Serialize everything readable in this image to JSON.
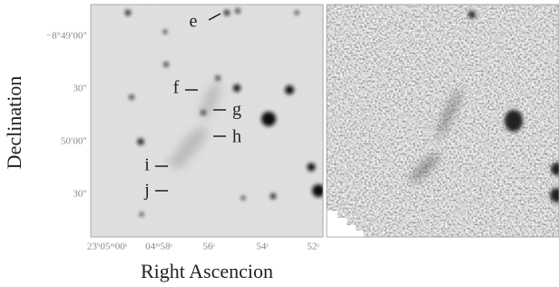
{
  "figure": {
    "y_axis_label": "Declination",
    "x_axis_label": "Right Ascencion",
    "y_tick_labels": [
      "−8°49′00″",
      "30″",
      "50′00″",
      "30″"
    ],
    "x_tick_labels": [
      "23ʰ05ᵐ00ˢ",
      "04ᵐ58ˢ",
      "56ˢ",
      "54ˢ",
      "52ˢ"
    ],
    "annotations": [
      "e",
      "f",
      "g",
      "h",
      "i",
      "j"
    ]
  }
}
